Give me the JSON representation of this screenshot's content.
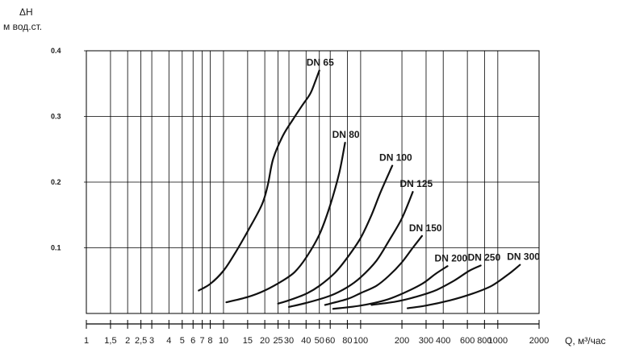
{
  "chart_data": {
    "type": "line",
    "title": "",
    "ylabel_symbol": "ΔH",
    "ylabel_units": "м вод.ст.",
    "xlabel": "Q, м³/час",
    "x_scale": "log",
    "xlim": [
      1,
      2000
    ],
    "ylim": [
      0,
      0.4
    ],
    "y_ticks": [
      "0.1",
      "0.2",
      "0.3",
      "0.4"
    ],
    "y_tick_values": [
      0.1,
      0.2,
      0.3,
      0.4
    ],
    "x_ticks": [
      "1",
      "1,5",
      "2",
      "2,5",
      "3",
      "4",
      "5",
      "6",
      "7",
      "8",
      "10",
      "15",
      "20",
      "25",
      "30",
      "40",
      "50",
      "60",
      "80",
      "100",
      "200",
      "300",
      "400",
      "600",
      "800",
      "1000",
      "2000"
    ],
    "x_tick_values": [
      1,
      1.5,
      2,
      2.5,
      3,
      4,
      5,
      6,
      7,
      8,
      10,
      15,
      20,
      25,
      30,
      40,
      50,
      60,
      80,
      100,
      200,
      300,
      400,
      600,
      800,
      1000,
      2000
    ],
    "grid": true,
    "series": [
      {
        "name": "DN 65",
        "x": [
          6.6,
          8,
          10,
          12,
          15,
          19,
          21,
          23,
          27,
          32,
          37,
          43,
          47,
          50
        ],
        "y": [
          0.035,
          0.045,
          0.065,
          0.09,
          0.125,
          0.165,
          0.195,
          0.235,
          0.27,
          0.295,
          0.315,
          0.335,
          0.355,
          0.37
        ]
      },
      {
        "name": "DN 80",
        "x": [
          10.5,
          15,
          20,
          27,
          33,
          40,
          50,
          60,
          70,
          77
        ],
        "y": [
          0.017,
          0.025,
          0.035,
          0.05,
          0.063,
          0.085,
          0.12,
          0.165,
          0.215,
          0.26
        ]
      },
      {
        "name": "DN 100",
        "x": [
          25,
          30,
          40,
          50,
          65,
          80,
          100,
          120,
          140,
          170
        ],
        "y": [
          0.015,
          0.02,
          0.03,
          0.042,
          0.062,
          0.085,
          0.115,
          0.15,
          0.185,
          0.225
        ]
      },
      {
        "name": "DN 125",
        "x": [
          30,
          40,
          60,
          80,
          100,
          130,
          160,
          200,
          240
        ],
        "y": [
          0.01,
          0.016,
          0.027,
          0.04,
          0.055,
          0.08,
          0.11,
          0.145,
          0.185
        ]
      },
      {
        "name": "DN 150",
        "x": [
          55,
          80,
          100,
          130,
          160,
          200,
          240,
          280
        ],
        "y": [
          0.013,
          0.022,
          0.031,
          0.042,
          0.057,
          0.078,
          0.1,
          0.118
        ]
      },
      {
        "name": "DN 200",
        "x": [
          63,
          100,
          150,
          200,
          280,
          350,
          430
        ],
        "y": [
          0.007,
          0.012,
          0.02,
          0.03,
          0.045,
          0.06,
          0.072
        ]
      },
      {
        "name": "DN 250",
        "x": [
          120,
          180,
          250,
          350,
          480,
          620,
          750
        ],
        "y": [
          0.013,
          0.018,
          0.025,
          0.035,
          0.05,
          0.065,
          0.073
        ]
      },
      {
        "name": "DN 300",
        "x": [
          220,
          300,
          450,
          650,
          900,
          1200,
          1450
        ],
        "y": [
          0.008,
          0.012,
          0.02,
          0.03,
          0.042,
          0.06,
          0.074
        ]
      }
    ]
  }
}
